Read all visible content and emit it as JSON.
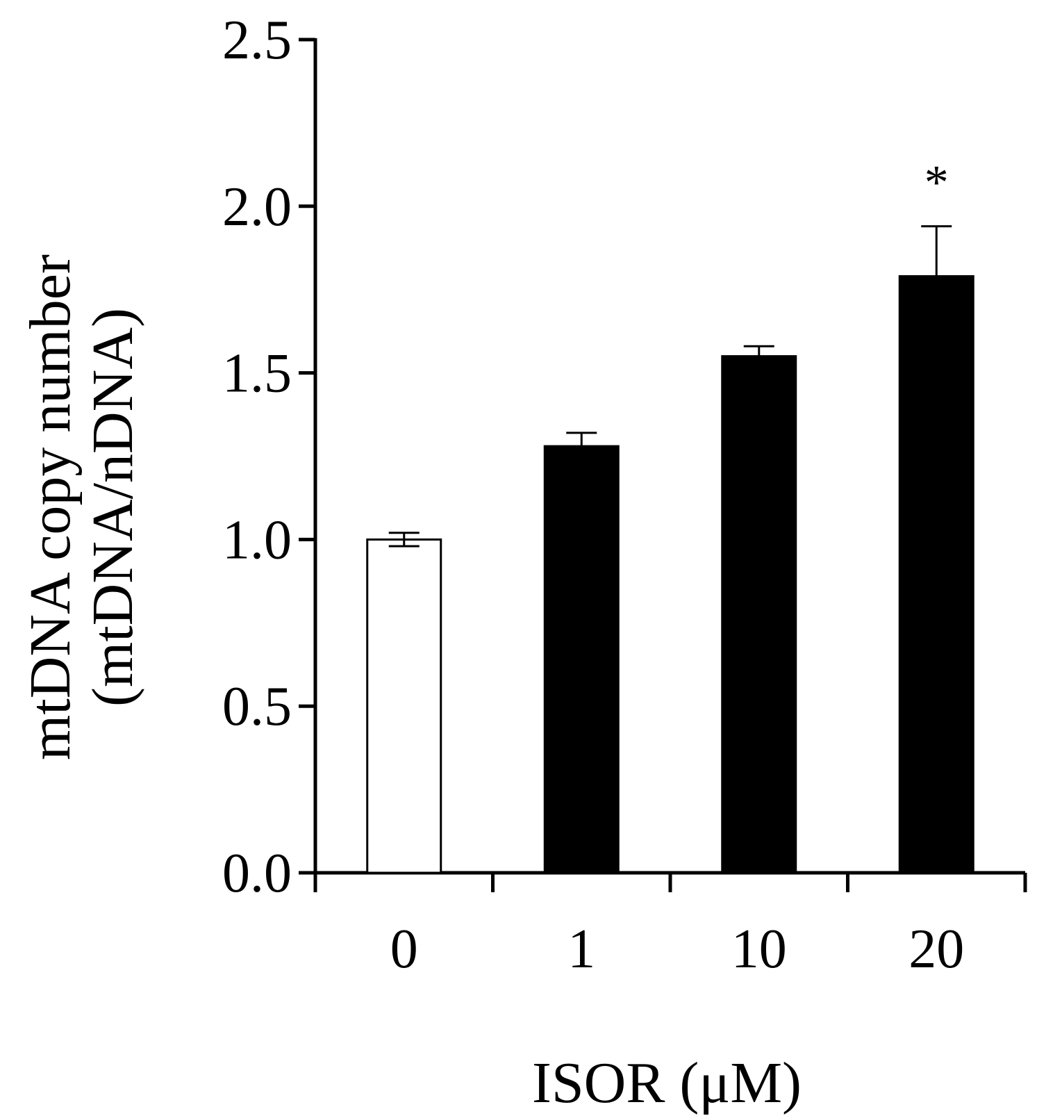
{
  "chart_data": {
    "type": "bar",
    "title": "",
    "xlabel": "ISOR (μM)",
    "ylabel_line1": "mtDNA  copy number",
    "ylabel_line2": "(mtDNA/nDNA)",
    "categories": [
      "0",
      "1",
      "10",
      "20"
    ],
    "values": [
      1.0,
      1.28,
      1.55,
      1.79
    ],
    "errors": [
      0.02,
      0.04,
      0.03,
      0.15
    ],
    "bar_colors": [
      "#ffffff",
      "#000000",
      "#000000",
      "#000000"
    ],
    "significance": [
      "",
      "",
      "",
      "*"
    ],
    "ylim": [
      0,
      2.5
    ],
    "yticks": [
      0.0,
      0.5,
      1.0,
      1.5,
      2.0,
      2.5
    ],
    "ytick_labels": [
      "0.0",
      "0.5",
      "1.0",
      "1.5",
      "2.0",
      "2.5"
    ],
    "grid": false,
    "legend": "none"
  },
  "colors": {
    "axis": "#000000",
    "bar_outline": "#000000",
    "background": "#ffffff"
  }
}
